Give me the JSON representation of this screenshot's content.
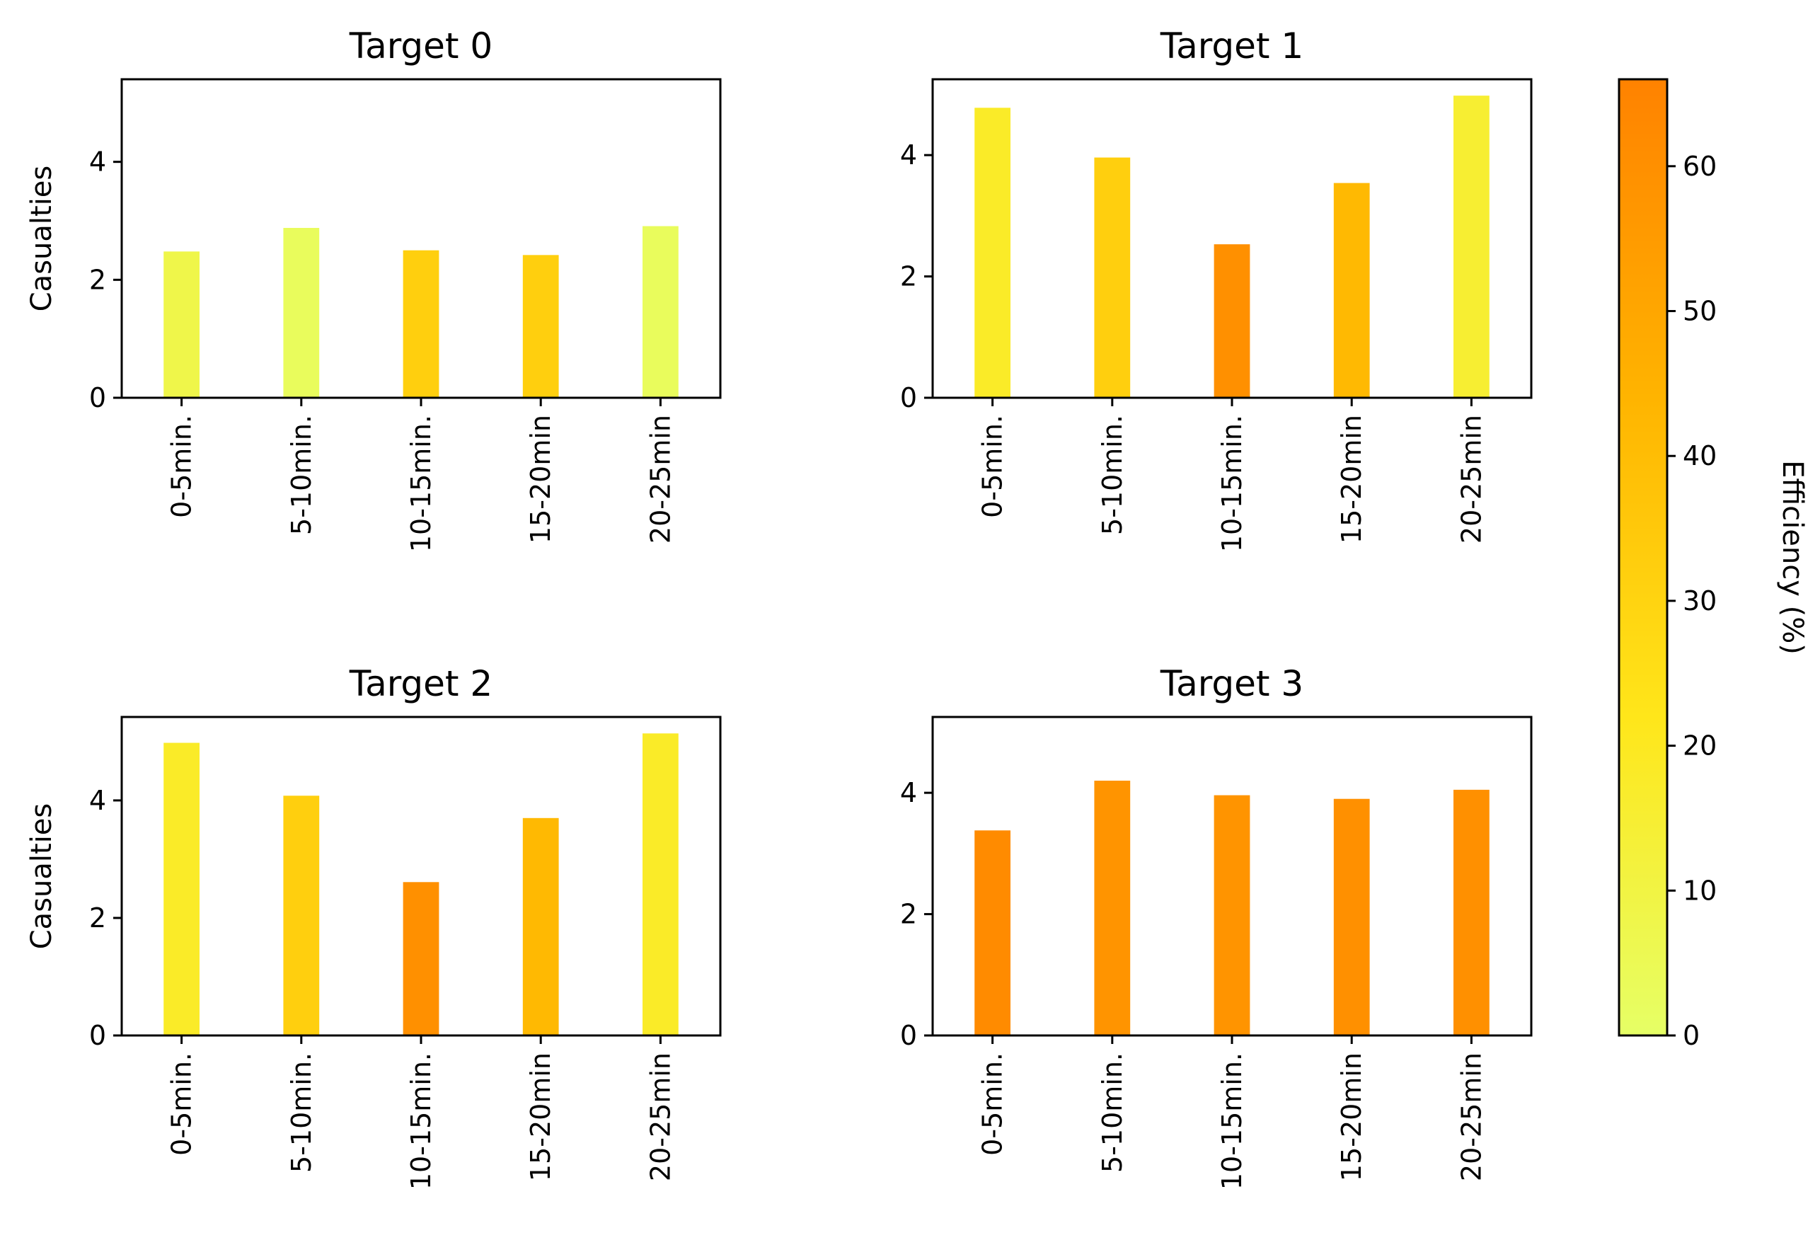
{
  "chart_data": [
    {
      "type": "bar",
      "title": "Target 0",
      "ylabel": "Casualties",
      "xlabel": "",
      "categories": [
        "0-5min.",
        "5-10min.",
        "10-15min.",
        "15-20min",
        "20-25min"
      ],
      "values": [
        2.48,
        2.88,
        2.5,
        2.42,
        2.91
      ],
      "efficiency": [
        8,
        3,
        32,
        32,
        3
      ],
      "ylim": [
        0,
        5.4
      ],
      "yticks": [
        0,
        2,
        4
      ],
      "grid": false
    },
    {
      "type": "bar",
      "title": "Target 1",
      "ylabel": "",
      "xlabel": "",
      "categories": [
        "0-5min.",
        "5-10min.",
        "10-15min.",
        "15-20min",
        "20-25min"
      ],
      "values": [
        4.78,
        3.96,
        2.53,
        3.54,
        4.98
      ],
      "efficiency": [
        18,
        32,
        60,
        42,
        15
      ],
      "ylim": [
        0,
        5.25
      ],
      "yticks": [
        0,
        2,
        4
      ],
      "grid": false
    },
    {
      "type": "bar",
      "title": "Target 2",
      "ylabel": "Casualties",
      "xlabel": "",
      "categories": [
        "0-5min.",
        "5-10min.",
        "10-15min.",
        "15-20min",
        "20-25min"
      ],
      "values": [
        4.98,
        4.08,
        2.61,
        3.7,
        5.14
      ],
      "efficiency": [
        18,
        32,
        60,
        42,
        18
      ],
      "ylim": [
        0,
        5.42
      ],
      "yticks": [
        0,
        2,
        4
      ],
      "grid": false
    },
    {
      "type": "bar",
      "title": "Target 3",
      "ylabel": "",
      "xlabel": "",
      "categories": [
        "0-5min.",
        "5-10min.",
        "10-15min.",
        "15-20min",
        "20-25min"
      ],
      "values": [
        3.38,
        4.2,
        3.96,
        3.9,
        4.05
      ],
      "efficiency": [
        62,
        58,
        58,
        60,
        60
      ],
      "ylim": [
        0,
        5.25
      ],
      "yticks": [
        0,
        2,
        4
      ],
      "grid": false
    }
  ],
  "colorbar": {
    "label": "Efficiency (%)",
    "range": [
      0,
      66
    ],
    "ticks": [
      0,
      10,
      20,
      30,
      40,
      50,
      60
    ],
    "colors": [
      "#e6ff66",
      "#ffe61a",
      "#ffb400",
      "#ff8200"
    ]
  }
}
